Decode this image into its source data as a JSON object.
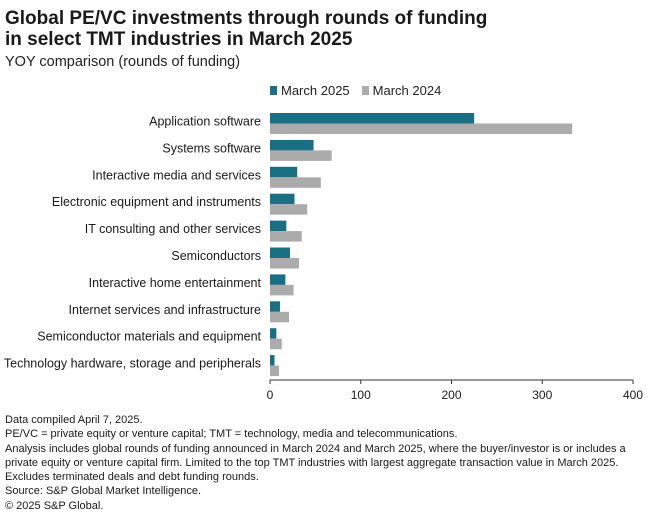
{
  "header": {
    "title_line1": "Global PE/VC investments through rounds of funding",
    "title_line2": "in select TMT industries in March 2025",
    "subtitle": "YOY comparison (rounds of funding)"
  },
  "colors": {
    "march_2025": "#1b6f84",
    "march_2024": "#ababab",
    "axis": "#333333",
    "text": "#1a1a1a"
  },
  "chart_data": {
    "type": "bar",
    "orientation": "horizontal",
    "categories": [
      "Application software",
      "Systems software",
      "Interactive media and services",
      "Electronic equipment and instruments",
      "IT consulting and other services",
      "Semiconductors",
      "Interactive home entertainment",
      "Internet services and infrastructure",
      "Semiconductor materials and equipment",
      "Technology hardware, storage and peripherals"
    ],
    "series": [
      {
        "name": "March 2025",
        "values": [
          225,
          48,
          30,
          27,
          18,
          22,
          17,
          11,
          7,
          5
        ]
      },
      {
        "name": "March 2024",
        "values": [
          333,
          68,
          56,
          41,
          35,
          32,
          26,
          21,
          13,
          10
        ]
      }
    ],
    "xlim": [
      0,
      400
    ],
    "xticks": [
      0,
      100,
      200,
      300,
      400
    ],
    "legend_position": "top",
    "grid": false
  },
  "footer": {
    "lines": [
      "Data compiled April 7, 2025.",
      "PE/VC = private equity or venture capital; TMT = technology, media and telecommunications.",
      "Analysis includes global rounds of funding announced in March 2024 and March 2025, where the buyer/investor is or includes a",
      "private equity or venture capital firm. Limited to the top TMT industries with largest aggregate transaction value in March 2025.",
      "Excludes terminated deals and debt funding rounds.",
      "Source: S&P Global Market Intelligence.",
      "© 2025 S&P Global."
    ]
  }
}
